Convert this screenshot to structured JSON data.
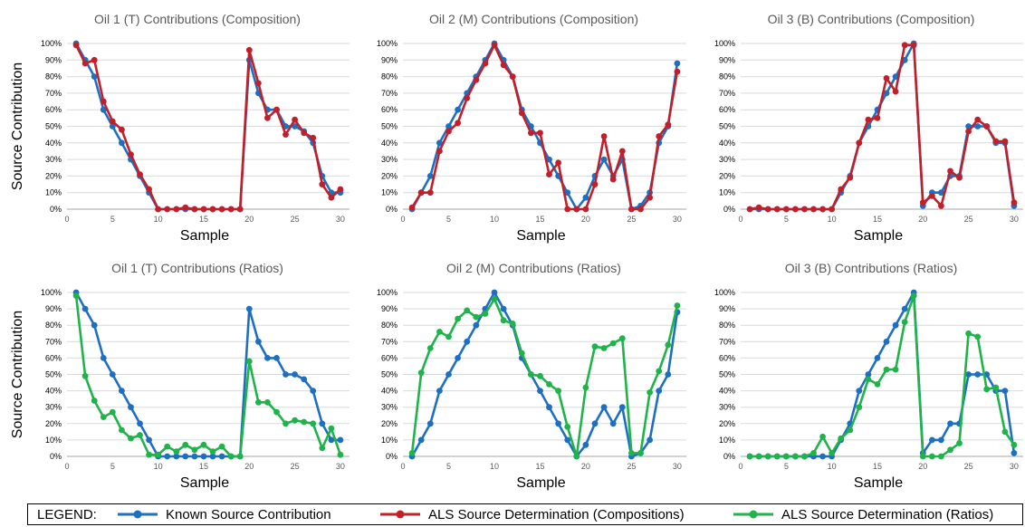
{
  "colors": {
    "known": "#1f6fc1",
    "als_comp": "#c1202a",
    "als_ratio": "#1fb34a",
    "grid": "#d9d9d9",
    "axis": "#a6a6a6",
    "text": "#595959"
  },
  "legend": {
    "title": "LEGEND:",
    "entries": [
      {
        "key": "known",
        "label": "Known Source Contribution"
      },
      {
        "key": "als_comp",
        "label": "ALS Source Determination (Compositions)"
      },
      {
        "key": "als_ratio",
        "label": "ALS Source Determination (Ratios)"
      }
    ]
  },
  "chart_data": [
    {
      "type": "line",
      "title": "Oil 1 (T) Contributions (Composition)",
      "xlabel": "Sample",
      "ylabel": "Source Contribution",
      "x": [
        1,
        2,
        3,
        4,
        5,
        6,
        7,
        8,
        9,
        10,
        11,
        12,
        13,
        14,
        15,
        16,
        17,
        18,
        19,
        20,
        21,
        22,
        23,
        24,
        25,
        26,
        27,
        28,
        29,
        30
      ],
      "xticks": [
        0,
        5,
        10,
        15,
        20,
        25,
        30
      ],
      "yticks": [
        "0%",
        "10%",
        "20%",
        "30%",
        "40%",
        "50%",
        "60%",
        "70%",
        "80%",
        "90%",
        "100%"
      ],
      "xlim": [
        0,
        31
      ],
      "ylim": [
        0,
        100
      ],
      "grid": true,
      "series": [
        {
          "key": "known",
          "name": "Known Source Contribution",
          "values": [
            100,
            90,
            80,
            60,
            50,
            40,
            30,
            20,
            10,
            0,
            0,
            0,
            0,
            0,
            0,
            0,
            0,
            0,
            0,
            90,
            70,
            60,
            60,
            50,
            50,
            47,
            40,
            20,
            10,
            10
          ]
        },
        {
          "key": "als_comp",
          "name": "ALS Source Determination (Compositions)",
          "values": [
            99,
            88,
            90,
            65,
            53,
            48,
            33,
            21,
            12,
            0,
            0,
            0,
            1,
            0,
            0,
            0,
            0,
            0,
            0,
            96,
            76,
            55,
            60,
            45,
            54,
            46,
            43,
            15,
            7,
            12
          ]
        }
      ]
    },
    {
      "type": "line",
      "title": "Oil 2 (M) Contributions (Composition)",
      "xlabel": "Sample",
      "ylabel": "",
      "x": [
        1,
        2,
        3,
        4,
        5,
        6,
        7,
        8,
        9,
        10,
        11,
        12,
        13,
        14,
        15,
        16,
        17,
        18,
        19,
        20,
        21,
        22,
        23,
        24,
        25,
        26,
        27,
        28,
        29,
        30
      ],
      "xticks": [
        0,
        5,
        10,
        15,
        20,
        25,
        30
      ],
      "yticks": [
        "0%",
        "10%",
        "20%",
        "30%",
        "40%",
        "50%",
        "60%",
        "70%",
        "80%",
        "90%",
        "100%"
      ],
      "xlim": [
        0,
        31
      ],
      "ylim": [
        0,
        100
      ],
      "grid": true,
      "series": [
        {
          "key": "known",
          "name": "Known Source Contribution",
          "values": [
            0,
            10,
            20,
            40,
            50,
            60,
            70,
            80,
            90,
            100,
            90,
            80,
            60,
            50,
            40,
            30,
            20,
            10,
            0,
            7,
            20,
            30,
            20,
            30,
            0,
            2,
            10,
            40,
            50,
            88
          ]
        },
        {
          "key": "als_comp",
          "name": "ALS Source Determination (Compositions)",
          "values": [
            1,
            10,
            10,
            35,
            47,
            52,
            67,
            78,
            88,
            99,
            87,
            80,
            58,
            46,
            46,
            21,
            28,
            0,
            0,
            0,
            15,
            44,
            18,
            35,
            0,
            0,
            7,
            44,
            51,
            83
          ]
        }
      ]
    },
    {
      "type": "line",
      "title": "Oil 3 (B) Contributions (Composition)",
      "xlabel": "Sample",
      "ylabel": "",
      "x": [
        1,
        2,
        3,
        4,
        5,
        6,
        7,
        8,
        9,
        10,
        11,
        12,
        13,
        14,
        15,
        16,
        17,
        18,
        19,
        20,
        21,
        22,
        23,
        24,
        25,
        26,
        27,
        28,
        29,
        30
      ],
      "xticks": [
        0,
        5,
        10,
        15,
        20,
        25,
        30
      ],
      "yticks": [
        "0%",
        "10%",
        "20%",
        "30%",
        "40%",
        "50%",
        "60%",
        "70%",
        "80%",
        "90%",
        "100%"
      ],
      "xlim": [
        0,
        31
      ],
      "ylim": [
        0,
        100
      ],
      "grid": true,
      "series": [
        {
          "key": "known",
          "name": "Known Source Contribution",
          "values": [
            0,
            0,
            0,
            0,
            0,
            0,
            0,
            0,
            0,
            0,
            10,
            20,
            40,
            50,
            60,
            70,
            80,
            90,
            100,
            2,
            10,
            10,
            20,
            20,
            50,
            50,
            50,
            40,
            40,
            2
          ]
        },
        {
          "key": "als_comp",
          "name": "ALS Source Determination (Compositions)",
          "values": [
            0,
            1,
            0,
            0,
            0,
            0,
            0,
            0,
            0,
            0,
            12,
            19,
            40,
            54,
            55,
            79,
            71,
            99,
            99,
            4,
            8,
            2,
            23,
            19,
            47,
            54,
            50,
            41,
            41,
            4
          ]
        }
      ]
    },
    {
      "type": "line",
      "title": "Oil 1 (T) Contributions (Ratios)",
      "xlabel": "Sample",
      "ylabel": "Source Contribution",
      "x": [
        1,
        2,
        3,
        4,
        5,
        6,
        7,
        8,
        9,
        10,
        11,
        12,
        13,
        14,
        15,
        16,
        17,
        18,
        19,
        20,
        21,
        22,
        23,
        24,
        25,
        26,
        27,
        28,
        29,
        30
      ],
      "xticks": [
        0,
        5,
        10,
        15,
        20,
        25,
        30
      ],
      "yticks": [
        "0%",
        "10%",
        "20%",
        "30%",
        "40%",
        "50%",
        "60%",
        "70%",
        "80%",
        "90%",
        "100%"
      ],
      "xlim": [
        0,
        31
      ],
      "ylim": [
        0,
        100
      ],
      "grid": true,
      "series": [
        {
          "key": "known",
          "name": "Known Source Contribution",
          "values": [
            100,
            90,
            80,
            60,
            50,
            40,
            30,
            20,
            10,
            0,
            0,
            0,
            0,
            0,
            0,
            0,
            0,
            0,
            0,
            90,
            70,
            60,
            60,
            50,
            50,
            47,
            40,
            20,
            10,
            10
          ]
        },
        {
          "key": "als_ratio",
          "name": "ALS Source Determination (Ratios)",
          "values": [
            98,
            49,
            34,
            24,
            27,
            16,
            11,
            13,
            1,
            1,
            6,
            3,
            7,
            4,
            7,
            3,
            6,
            0,
            0,
            58,
            33,
            33,
            27,
            20,
            22,
            21,
            20,
            5,
            17,
            1
          ]
        }
      ]
    },
    {
      "type": "line",
      "title": "Oil 2 (M) Contributions (Ratios)",
      "xlabel": "Sample",
      "ylabel": "",
      "x": [
        1,
        2,
        3,
        4,
        5,
        6,
        7,
        8,
        9,
        10,
        11,
        12,
        13,
        14,
        15,
        16,
        17,
        18,
        19,
        20,
        21,
        22,
        23,
        24,
        25,
        26,
        27,
        28,
        29,
        30
      ],
      "xticks": [
        0,
        5,
        10,
        15,
        20,
        25,
        30
      ],
      "yticks": [
        "0%",
        "10%",
        "20%",
        "30%",
        "40%",
        "50%",
        "60%",
        "70%",
        "80%",
        "90%",
        "100%"
      ],
      "xlim": [
        0,
        31
      ],
      "ylim": [
        0,
        100
      ],
      "grid": true,
      "series": [
        {
          "key": "known",
          "name": "Known Source Contribution",
          "values": [
            0,
            10,
            20,
            40,
            50,
            60,
            70,
            80,
            90,
            100,
            90,
            80,
            60,
            50,
            40,
            30,
            20,
            10,
            0,
            7,
            20,
            30,
            20,
            30,
            0,
            2,
            10,
            40,
            50,
            88
          ]
        },
        {
          "key": "als_ratio",
          "name": "ALS Source Determination (Ratios)",
          "values": [
            2,
            51,
            66,
            76,
            73,
            84,
            89,
            85,
            87,
            96,
            83,
            81,
            63,
            50,
            49,
            44,
            40,
            18,
            0,
            42,
            67,
            66,
            69,
            72,
            2,
            2,
            39,
            52,
            68,
            92
          ]
        }
      ]
    },
    {
      "type": "line",
      "title": "Oil 3 (B) Contributions (Ratios)",
      "xlabel": "Sample",
      "ylabel": "",
      "x": [
        1,
        2,
        3,
        4,
        5,
        6,
        7,
        8,
        9,
        10,
        11,
        12,
        13,
        14,
        15,
        16,
        17,
        18,
        19,
        20,
        21,
        22,
        23,
        24,
        25,
        26,
        27,
        28,
        29,
        30
      ],
      "xticks": [
        0,
        5,
        10,
        15,
        20,
        25,
        30
      ],
      "yticks": [
        "0%",
        "10%",
        "20%",
        "30%",
        "40%",
        "50%",
        "60%",
        "70%",
        "80%",
        "90%",
        "100%"
      ],
      "xlim": [
        0,
        31
      ],
      "ylim": [
        0,
        100
      ],
      "grid": true,
      "series": [
        {
          "key": "known",
          "name": "Known Source Contribution",
          "values": [
            0,
            0,
            0,
            0,
            0,
            0,
            0,
            0,
            0,
            0,
            10,
            20,
            40,
            50,
            60,
            70,
            80,
            90,
            100,
            2,
            10,
            10,
            20,
            20,
            50,
            50,
            50,
            40,
            40,
            2
          ]
        },
        {
          "key": "als_ratio",
          "name": "ALS Source Determination (Ratios)",
          "values": [
            0,
            0,
            0,
            0,
            0,
            0,
            0,
            2,
            12,
            2,
            11,
            16,
            30,
            47,
            44,
            53,
            53,
            82,
            98,
            0,
            0,
            0,
            4,
            8,
            75,
            73,
            41,
            42,
            15,
            7
          ]
        }
      ]
    }
  ]
}
